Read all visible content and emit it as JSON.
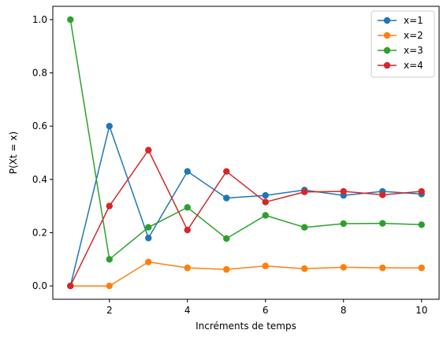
{
  "chart_data": {
    "type": "line",
    "title": "",
    "xlabel": "Incréments de temps",
    "ylabel": "P(Xt = x)",
    "x": [
      1,
      2,
      3,
      4,
      5,
      6,
      7,
      8,
      9,
      10
    ],
    "xlim": [
      0.55,
      10.45
    ],
    "ylim": [
      -0.05,
      1.05
    ],
    "xticks": [
      2,
      4,
      6,
      8,
      10
    ],
    "yticks": [
      0.0,
      0.2,
      0.4,
      0.6,
      0.8,
      1.0
    ],
    "xtick_labels": [
      "2",
      "4",
      "6",
      "8",
      "10"
    ],
    "ytick_labels": [
      "0.0",
      "0.2",
      "0.4",
      "0.6",
      "0.8",
      "1.0"
    ],
    "grid": false,
    "legend_position": "top-right",
    "markers": "circle",
    "series": [
      {
        "name": "x=1",
        "color": "#1f77b4",
        "values": [
          0.0,
          0.6,
          0.18,
          0.43,
          0.33,
          0.34,
          0.36,
          0.34,
          0.355,
          0.345
        ]
      },
      {
        "name": "x=2",
        "color": "#ff7f0e",
        "values": [
          0.0,
          0.0,
          0.09,
          0.068,
          0.062,
          0.075,
          0.065,
          0.07,
          0.068,
          0.068
        ]
      },
      {
        "name": "x=3",
        "color": "#2ca02c",
        "values": [
          1.0,
          0.1,
          0.22,
          0.295,
          0.178,
          0.265,
          0.22,
          0.234,
          0.235,
          0.23
        ]
      },
      {
        "name": "x=4",
        "color": "#d62728",
        "values": [
          0.0,
          0.3,
          0.51,
          0.21,
          0.43,
          0.315,
          0.353,
          0.355,
          0.342,
          0.355
        ]
      }
    ]
  }
}
